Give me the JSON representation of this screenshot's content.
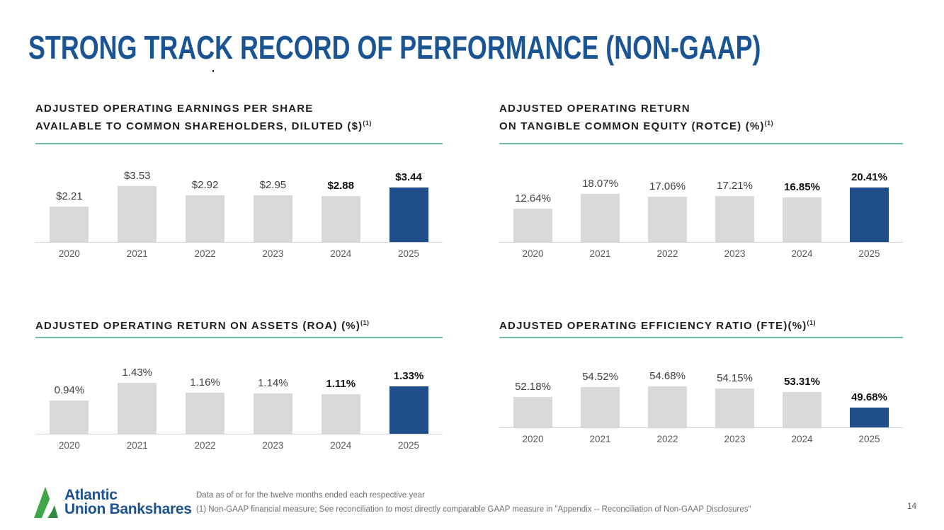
{
  "slide": {
    "title": "STRONG TRACK RECORD OF PERFORMANCE (NON-GAAP)",
    "page_number": "14",
    "footnote_line1": "Data as of or for the twelve months ended each respective year",
    "footnote_line2": "(1) Non-GAAP financial measure; See reconciliation to most directly comparable GAAP measure in \"Appendix -- Reconciliation of Non-GAAP Disclosures\"",
    "logo": {
      "line1": "Atlantic",
      "line2": "Union Bankshares"
    }
  },
  "colors": {
    "title_blue": "#1a5493",
    "bar_gray": "#d9d9d9",
    "bar_highlight_blue": "#1f4e8b",
    "rule_teal": "#6fbda0",
    "logo_green": "#41a649",
    "logo_green_dark": "#2f8a42"
  },
  "chart_data": [
    {
      "type": "bar",
      "title_lines": [
        "ADJUSTED OPERATING EARNINGS PER SHARE",
        "AVAILABLE TO COMMON SHAREHOLDERS, DILUTED ($)"
      ],
      "title_sup": "(1)",
      "categories": [
        "2020",
        "2021",
        "2022",
        "2023",
        "2024",
        "2025"
      ],
      "values": [
        2.21,
        3.53,
        2.92,
        2.95,
        2.88,
        3.44
      ],
      "labels": [
        "$2.21",
        "$3.53",
        "$2.92",
        "$2.95",
        "$2.88",
        "$3.44"
      ],
      "ylim": [
        0,
        4
      ],
      "grid": false,
      "highlight_index": 5,
      "bold_label_indices": [
        4,
        5
      ]
    },
    {
      "type": "bar",
      "title_lines": [
        "ADJUSTED OPERATING RETURN",
        "ON TANGIBLE COMMON EQUITY (ROTCE) (%)"
      ],
      "title_sup": "(1)",
      "categories": [
        "2020",
        "2021",
        "2022",
        "2023",
        "2024",
        "2025"
      ],
      "values": [
        12.64,
        18.07,
        17.06,
        17.21,
        16.85,
        20.41
      ],
      "labels": [
        "12.64%",
        "18.07%",
        "17.06%",
        "17.21%",
        "16.85%",
        "20.41%"
      ],
      "ylim": [
        0,
        24
      ],
      "grid": false,
      "highlight_index": 5,
      "bold_label_indices": [
        4,
        5
      ]
    },
    {
      "type": "bar",
      "title_lines": [
        "ADJUSTED OPERATING RETURN ON ASSETS (ROA) (%)"
      ],
      "title_sup": "(1)",
      "categories": [
        "2020",
        "2021",
        "2022",
        "2023",
        "2024",
        "2025"
      ],
      "values": [
        0.94,
        1.43,
        1.16,
        1.14,
        1.11,
        1.33
      ],
      "labels": [
        "0.94%",
        "1.43%",
        "1.16%",
        "1.14%",
        "1.11%",
        "1.33%"
      ],
      "ylim": [
        0,
        1.8
      ],
      "grid": false,
      "highlight_index": 5,
      "bold_label_indices": [
        4,
        5
      ]
    },
    {
      "type": "bar",
      "title_lines": [
        "ADJUSTED OPERATING EFFICIENCY RATIO (FTE)(%)"
      ],
      "title_sup": "(1)",
      "categories": [
        "2020",
        "2021",
        "2022",
        "2023",
        "2024",
        "2025"
      ],
      "values": [
        52.18,
        54.52,
        54.68,
        54.15,
        53.31,
        49.68
      ],
      "labels": [
        "52.18%",
        "54.52%",
        "54.68%",
        "54.15%",
        "53.31%",
        "49.68%"
      ],
      "ylim": [
        45,
        60
      ],
      "grid": false,
      "highlight_index": 5,
      "bold_label_indices": [
        4,
        5
      ]
    }
  ]
}
